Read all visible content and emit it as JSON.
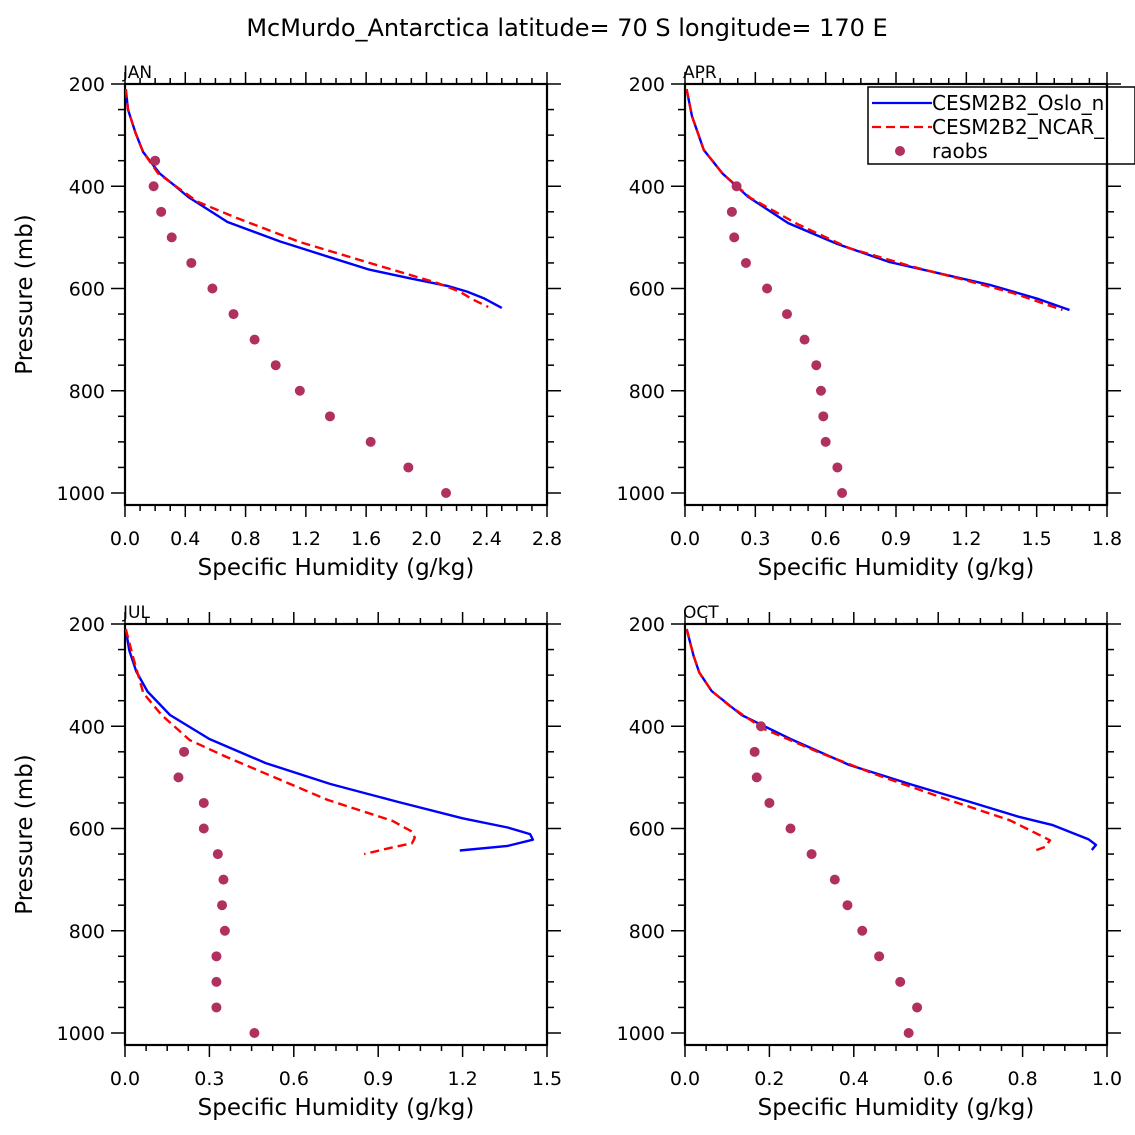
{
  "figure": {
    "title": "McMurdo_Antarctica  latitude= 70 S longitude= 170 E"
  },
  "legend": {
    "placement": "top-right of APR panel (clipped)",
    "entries": [
      {
        "label": "CESM2B2_Oslo_n",
        "style": "solid",
        "color": "#0000ff"
      },
      {
        "label": "CESM2B2_NCAR_",
        "style": "dashed",
        "color": "#ff0000"
      },
      {
        "label": "raobs",
        "style": "dot",
        "color": "#b03060"
      }
    ]
  },
  "chart_data": [
    {
      "type": "line",
      "panel": "JAN",
      "title": "JAN",
      "xlabel": "Specific Humidity (g/kg)",
      "ylabel": "Pressure (mb)",
      "xlim": [
        0,
        2.8
      ],
      "ylim": [
        200,
        1000
      ],
      "y_inverted": true,
      "xticks": [
        "0.0",
        "0.4",
        "0.8",
        "1.2",
        "1.6",
        "2.0",
        "2.4",
        "2.8"
      ],
      "yticks": [
        "200",
        "400",
        "600",
        "800",
        "1000"
      ],
      "series": [
        {
          "name": "CESM2B2_Oslo_n",
          "p": [
            210,
            250,
            296,
            333,
            375,
            394,
            421,
            470,
            508,
            539,
            563,
            580,
            595,
            606,
            619,
            638
          ],
          "q": [
            0.005,
            0.02,
            0.07,
            0.12,
            0.23,
            0.31,
            0.42,
            0.68,
            1.03,
            1.36,
            1.62,
            1.89,
            2.14,
            2.27,
            2.38,
            2.5
          ]
        },
        {
          "name": "CESM2B2_NCAR_",
          "p": [
            210,
            250,
            296,
            333,
            375,
            394,
            430,
            462,
            509,
            548,
            589,
            606,
            622,
            636
          ],
          "q": [
            0.005,
            0.02,
            0.07,
            0.12,
            0.22,
            0.31,
            0.48,
            0.74,
            1.16,
            1.6,
            2.07,
            2.22,
            2.31,
            2.41
          ]
        },
        {
          "name": "raobs",
          "p": [
            350,
            400,
            450,
            500,
            550,
            600,
            650,
            700,
            750,
            800,
            850,
            900,
            950,
            1000
          ],
          "q": [
            0.2,
            0.19,
            0.24,
            0.31,
            0.44,
            0.58,
            0.72,
            0.86,
            1.0,
            1.16,
            1.36,
            1.63,
            1.88,
            2.13
          ]
        }
      ]
    },
    {
      "type": "line",
      "panel": "APR",
      "title": "APR",
      "xlabel": "Specific Humidity (g/kg)",
      "ylabel": "",
      "xlim": [
        0,
        1.8
      ],
      "ylim": [
        200,
        1000
      ],
      "y_inverted": true,
      "xticks": [
        "0.0",
        "0.3",
        "0.6",
        "0.9",
        "1.2",
        "1.5",
        "1.8"
      ],
      "yticks": [
        "200",
        "400",
        "600",
        "800",
        "1000"
      ],
      "series": [
        {
          "name": "CESM2B2_Oslo_n",
          "p": [
            210,
            263,
            329,
            375,
            421,
            472,
            513,
            548,
            572,
            593,
            621,
            642
          ],
          "q": [
            0.007,
            0.03,
            0.08,
            0.16,
            0.27,
            0.44,
            0.65,
            0.87,
            1.1,
            1.3,
            1.51,
            1.64
          ]
        },
        {
          "name": "CESM2B2_NCAR_",
          "p": [
            210,
            263,
            329,
            375,
            423,
            474,
            521,
            556,
            583,
            609,
            642
          ],
          "q": [
            0.007,
            0.03,
            0.08,
            0.16,
            0.28,
            0.48,
            0.7,
            0.96,
            1.19,
            1.4,
            1.61
          ]
        },
        {
          "name": "raobs",
          "p": [
            400,
            450,
            500,
            550,
            600,
            650,
            700,
            750,
            800,
            850,
            900,
            950,
            1000
          ],
          "q": [
            0.22,
            0.2,
            0.21,
            0.26,
            0.35,
            0.435,
            0.51,
            0.56,
            0.58,
            0.59,
            0.6,
            0.65,
            0.67
          ]
        }
      ]
    },
    {
      "type": "line",
      "panel": "JUL",
      "title": "JUL",
      "xlabel": "Specific Humidity (g/kg)",
      "ylabel": "Pressure (mb)",
      "xlim": [
        0,
        1.5
      ],
      "ylim": [
        200,
        1000
      ],
      "y_inverted": true,
      "xticks": [
        "0.0",
        "0.3",
        "0.6",
        "0.9",
        "1.2",
        "1.5"
      ],
      "yticks": [
        "200",
        "400",
        "600",
        "800",
        "1000"
      ],
      "series": [
        {
          "name": "CESM2B2_Oslo_n",
          "p": [
            210,
            251,
            293,
            332,
            378,
            425,
            472,
            513,
            548,
            580,
            598,
            611,
            622,
            634,
            643
          ],
          "q": [
            0.003,
            0.015,
            0.04,
            0.08,
            0.16,
            0.3,
            0.5,
            0.73,
            0.97,
            1.2,
            1.36,
            1.44,
            1.45,
            1.36,
            1.19
          ]
        },
        {
          "name": "CESM2B2_NCAR_",
          "p": [
            210,
            267,
            335,
            378,
            427,
            460,
            495,
            544,
            585,
            606,
            618,
            629,
            637,
            650
          ],
          "q": [
            0.003,
            0.03,
            0.065,
            0.13,
            0.23,
            0.36,
            0.51,
            0.72,
            0.95,
            1.02,
            1.03,
            1.02,
            0.95,
            0.85
          ]
        },
        {
          "name": "raobs",
          "p": [
            450,
            500,
            550,
            600,
            650,
            700,
            750,
            800,
            850,
            900,
            950,
            1000
          ],
          "q": [
            0.21,
            0.19,
            0.28,
            0.28,
            0.33,
            0.35,
            0.345,
            0.355,
            0.325,
            0.325,
            0.325,
            0.46
          ]
        }
      ]
    },
    {
      "type": "line",
      "panel": "OCT",
      "title": "OCT",
      "xlabel": "Specific Humidity (g/kg)",
      "ylabel": "",
      "xlim": [
        0,
        1.0
      ],
      "ylim": [
        200,
        1000
      ],
      "y_inverted": true,
      "xticks": [
        "0.0",
        "0.2",
        "0.4",
        "0.6",
        "0.8",
        "1.0"
      ],
      "yticks": [
        "200",
        "400",
        "600",
        "800",
        "1000"
      ],
      "series": [
        {
          "name": "CESM2B2_Oslo_n",
          "p": [
            210,
            261,
            295,
            331,
            378,
            425,
            476,
            515,
            548,
            577,
            593,
            621,
            632,
            642
          ],
          "q": [
            0.004,
            0.02,
            0.034,
            0.063,
            0.134,
            0.25,
            0.39,
            0.54,
            0.675,
            0.79,
            0.87,
            0.956,
            0.974,
            0.964
          ]
        },
        {
          "name": "CESM2B2_NCAR_",
          "p": [
            210,
            261,
            295,
            331,
            361,
            405,
            452,
            495,
            540,
            584,
            623,
            636,
            643
          ],
          "q": [
            0.004,
            0.02,
            0.034,
            0.063,
            0.107,
            0.186,
            0.32,
            0.454,
            0.61,
            0.77,
            0.865,
            0.853,
            0.83
          ]
        },
        {
          "name": "raobs",
          "p": [
            400,
            450,
            500,
            550,
            600,
            650,
            700,
            750,
            800,
            850,
            900,
            950,
            1000
          ],
          "q": [
            0.18,
            0.165,
            0.17,
            0.2,
            0.25,
            0.3,
            0.355,
            0.385,
            0.42,
            0.46,
            0.51,
            0.55,
            0.53
          ]
        }
      ]
    }
  ]
}
